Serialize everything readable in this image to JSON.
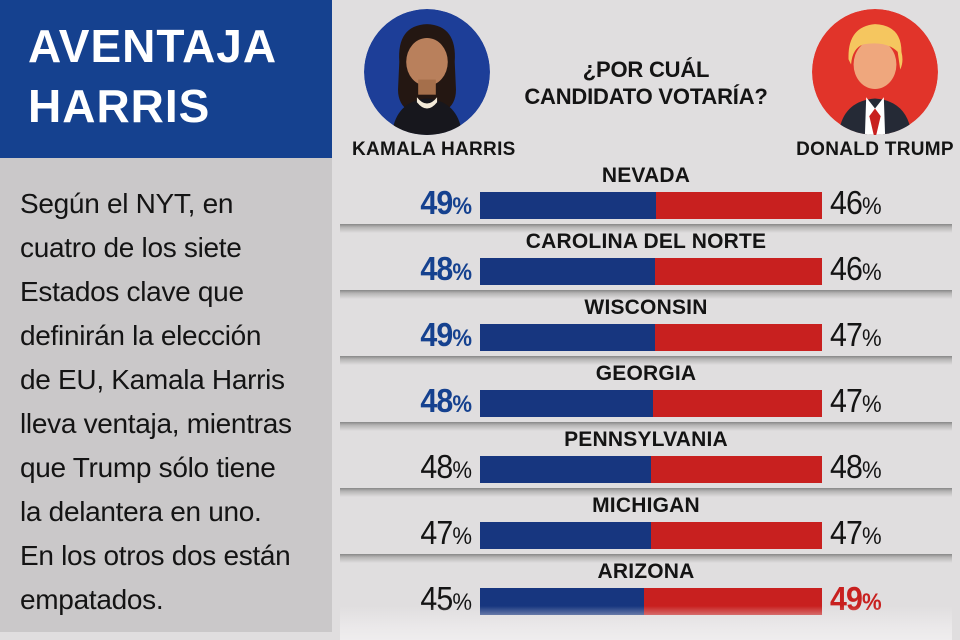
{
  "colors": {
    "page_bg": "#e0dedf",
    "left_panel_bg": "#cac8c9",
    "header_bg": "#15418f",
    "header_text": "#ffffff",
    "text_dark": "#141414",
    "harris_blue": "#15418f",
    "trump_red": "#c8201f",
    "bar_blue": "#17367f",
    "bar_red": "#c8201f",
    "harris_circle": "#1d3e98",
    "trump_circle": "#e1342a"
  },
  "header": {
    "title": "AVENTAJA HARRIS",
    "title_lines": [
      "AVENTAJA",
      "HARRIS"
    ]
  },
  "description": "Según el NYT, en cuatro de los siete Estados clave que definirán la elección de EU, Kamala Harris lleva ventaja, mientras que Trump sólo tiene la delantera en uno. En los otros dos están empatados.",
  "description_lines": [
    "Según el NYT, en",
    "cuatro de los siete",
    "Estados clave que",
    "definirán la elección",
    "de EU, Kamala Harris",
    "lleva ventaja, mientras",
    "que Trump sólo tiene",
    "la delantera en uno.",
    "En los otros dos están",
    "empatados."
  ],
  "question": {
    "lines": [
      "¿POR CUÁL",
      "CANDIDATO VOTARÍA?"
    ]
  },
  "candidates": {
    "harris": {
      "name": "KAMALA HARRIS",
      "color": "#15418f"
    },
    "trump": {
      "name": "DONALD TRUMP",
      "color": "#c8201f"
    }
  },
  "chart_data": {
    "type": "bar",
    "orientation": "horizontal-paired",
    "title": "¿POR CUÁL CANDIDATO VOTARÍA?",
    "unit": "%",
    "categories": [
      "NEVADA",
      "CAROLINA DEL NORTE",
      "WISCONSIN",
      "GEORGIA",
      "PENNSYLVANIA",
      "MICHIGAN",
      "ARIZONA"
    ],
    "series": [
      {
        "name": "KAMALA HARRIS",
        "color": "#17367f",
        "values": [
          49,
          48,
          49,
          48,
          48,
          47,
          45
        ]
      },
      {
        "name": "DONALD TRUMP",
        "color": "#c8201f",
        "values": [
          46,
          46,
          47,
          47,
          48,
          47,
          49
        ]
      }
    ],
    "leaders": [
      "harris",
      "harris",
      "harris",
      "harris",
      "tie",
      "tie",
      "trump"
    ],
    "legend_position": "top",
    "grid": false
  }
}
